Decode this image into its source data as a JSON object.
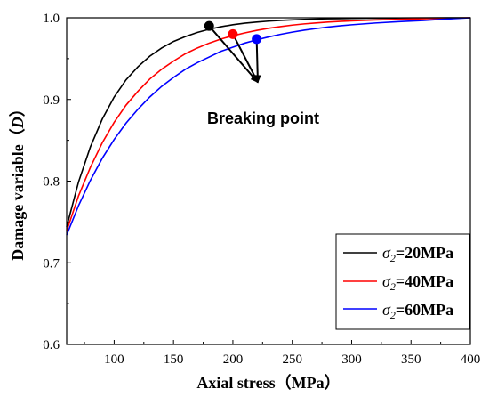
{
  "chart_data": {
    "type": "line",
    "xlabel": "Axial stress（MPa）",
    "ylabel": "Damage variable（D）",
    "ylabel_prefix": "Damage variable（",
    "ylabel_var": "D",
    "ylabel_suffix": "）",
    "xlim": [
      60,
      400
    ],
    "ylim": [
      0.6,
      1.0
    ],
    "xticks": [
      100,
      150,
      200,
      250,
      300,
      350,
      400
    ],
    "yticks": [
      0.6,
      0.7,
      0.8,
      0.9,
      1.0
    ],
    "ytick_labels": [
      "0.6",
      "0.7",
      "0.8",
      "0.9",
      "1.0"
    ],
    "grid": false,
    "legend_position": "bottom-right",
    "series": [
      {
        "name": "σ2=20MPa",
        "name_symbol": "σ",
        "name_sub": "2",
        "name_rest": "=20MPa",
        "color": "#000000",
        "x": [
          60,
          70,
          80,
          90,
          100,
          110,
          120,
          130,
          140,
          150,
          160,
          170,
          180,
          190,
          200,
          210,
          220,
          230,
          240,
          250,
          260,
          270,
          280,
          290,
          300,
          320,
          340,
          360,
          380,
          400
        ],
        "y": [
          0.744,
          0.799,
          0.842,
          0.876,
          0.903,
          0.924,
          0.94,
          0.953,
          0.963,
          0.971,
          0.977,
          0.982,
          0.986,
          0.989,
          0.9915,
          0.9934,
          0.9948,
          0.9959,
          0.9968,
          0.9975,
          0.998,
          0.9985,
          0.9988,
          0.999,
          0.9993,
          0.9995,
          0.9997,
          0.9998,
          0.9999,
          1.0
        ]
      },
      {
        "name": "σ2=40MPa",
        "name_symbol": "σ",
        "name_sub": "2",
        "name_rest": "=40MPa",
        "color": "#ff0000",
        "x": [
          60,
          70,
          80,
          90,
          100,
          110,
          120,
          130,
          140,
          150,
          160,
          170,
          180,
          190,
          200,
          210,
          220,
          230,
          240,
          250,
          260,
          270,
          280,
          290,
          300,
          320,
          340,
          360,
          380,
          400
        ],
        "y": [
          0.739,
          0.782,
          0.817,
          0.847,
          0.872,
          0.893,
          0.91,
          0.925,
          0.937,
          0.947,
          0.956,
          0.963,
          0.969,
          0.974,
          0.978,
          0.9815,
          0.9845,
          0.9871,
          0.9892,
          0.991,
          0.9925,
          0.9937,
          0.9947,
          0.9956,
          0.9963,
          0.9974,
          0.9982,
          0.9988,
          0.9994,
          1.0
        ]
      },
      {
        "name": "σ2=60MPa",
        "name_symbol": "σ",
        "name_sub": "2",
        "name_rest": "=60MPa",
        "color": "#0000ff",
        "x": [
          60,
          70,
          80,
          90,
          100,
          110,
          120,
          130,
          140,
          150,
          160,
          170,
          180,
          190,
          200,
          210,
          220,
          230,
          240,
          250,
          260,
          270,
          280,
          290,
          300,
          320,
          340,
          360,
          380,
          400
        ],
        "y": [
          0.734,
          0.77,
          0.801,
          0.828,
          0.851,
          0.871,
          0.888,
          0.903,
          0.916,
          0.927,
          0.937,
          0.945,
          0.952,
          0.959,
          0.964,
          0.969,
          0.973,
          0.9765,
          0.9797,
          0.9824,
          0.9848,
          0.9868,
          0.9886,
          0.9901,
          0.9914,
          0.9936,
          0.9953,
          0.9967,
          0.9985,
          1.0
        ]
      }
    ],
    "breaking_points": [
      {
        "x": 180,
        "y": 0.99,
        "color": "#000000"
      },
      {
        "x": 200,
        "y": 0.98,
        "color": "#ff0000"
      },
      {
        "x": 220,
        "y": 0.974,
        "color": "#0000ff"
      }
    ],
    "annotation": {
      "text": "Breaking point",
      "target_x": 221,
      "target_y": 0.921
    }
  }
}
